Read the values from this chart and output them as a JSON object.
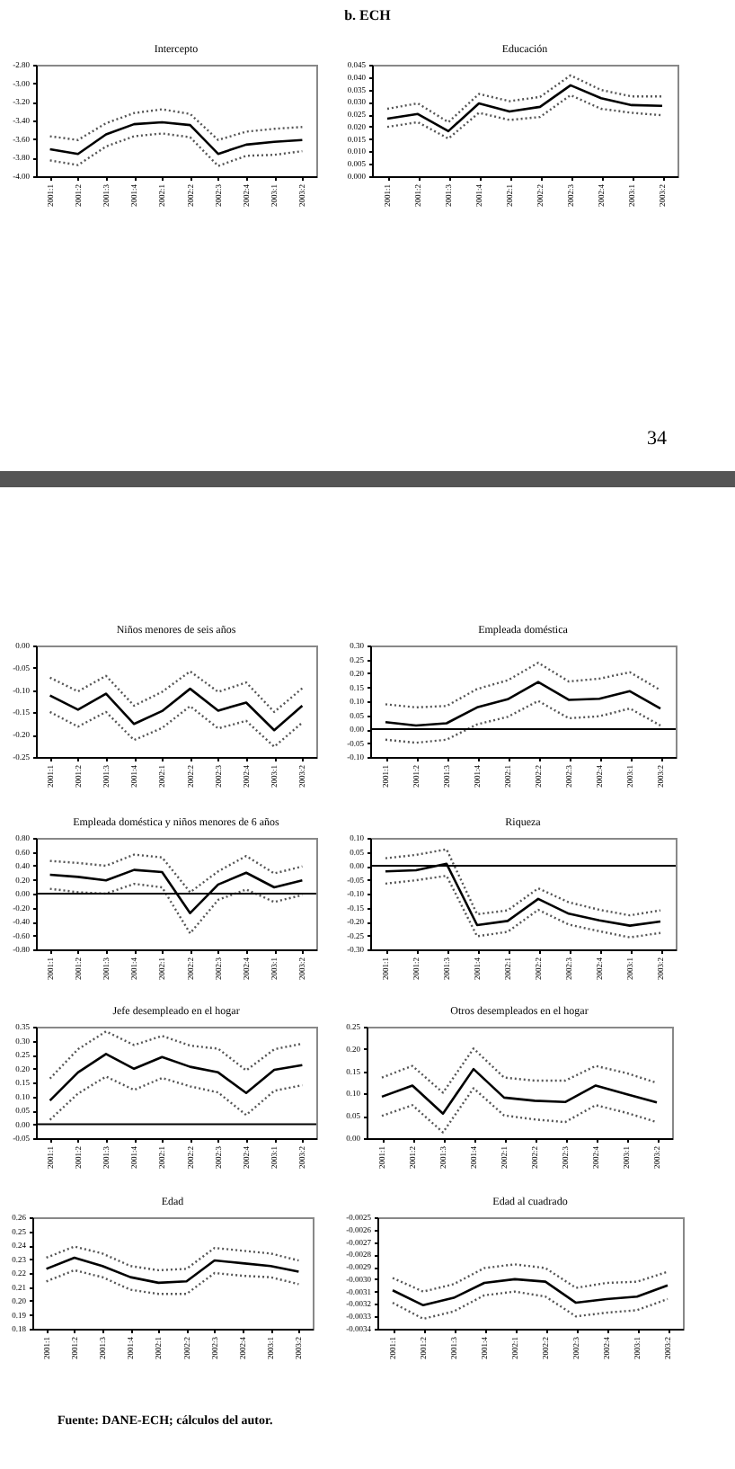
{
  "chart_data": [
    {
      "type": "line",
      "title": "Intercepto",
      "annotations": [
        "b. ECH"
      ],
      "categories": [
        "2001:1",
        "2001:2",
        "2001:3",
        "2001:4",
        "2002:1",
        "2002:2",
        "2002:3",
        "2002:4",
        "2003:1",
        "2003:2"
      ],
      "series": [
        {
          "color": "#000000",
          "line_style": "solid",
          "values": [
            -3.71,
            -3.76,
            -3.55,
            -3.44,
            -3.42,
            -3.45,
            -3.76,
            -3.66,
            -3.63,
            -3.61
          ]
        },
        {
          "color": "#555555",
          "line_style": "dotted",
          "values": [
            -3.57,
            -3.61,
            -3.43,
            -3.32,
            -3.28,
            -3.33,
            -3.61,
            -3.52,
            -3.49,
            -3.47
          ]
        },
        {
          "color": "#555555",
          "line_style": "dotted",
          "values": [
            -3.83,
            -3.88,
            -3.68,
            -3.57,
            -3.54,
            -3.58,
            -3.89,
            -3.78,
            -3.77,
            -3.73
          ]
        }
      ],
      "ylim": [
        -4.0,
        -2.8
      ],
      "yticks": [
        {
          "value": -2.8,
          "label": "-2.80"
        },
        {
          "value": -3.0,
          "label": "-3.00"
        },
        {
          "value": -3.2,
          "label": "-3.20"
        },
        {
          "value": -3.4,
          "label": "-3.40"
        },
        {
          "value": -3.6,
          "label": "-3.60"
        },
        {
          "value": -3.8,
          "label": "-3.80"
        },
        {
          "value": -4.0,
          "label": "-4.00"
        }
      ]
    },
    {
      "type": "line",
      "title": "Educación",
      "annotations": [
        "34"
      ],
      "categories": [
        "2001:1",
        "2001:2",
        "2001:3",
        "2001:4",
        "2002:1",
        "2002:2",
        "2002:3",
        "2002:4",
        "2003:1",
        "2003:2"
      ],
      "series": [
        {
          "color": "#000000",
          "line_style": "solid",
          "values": [
            0.0232,
            0.0251,
            0.0182,
            0.0294,
            0.0261,
            0.028,
            0.0367,
            0.0315,
            0.0287,
            0.0284
          ]
        },
        {
          "color": "#555555",
          "line_style": "dotted",
          "values": [
            0.0272,
            0.0294,
            0.0218,
            0.0332,
            0.0303,
            0.032,
            0.0407,
            0.0348,
            0.0322,
            0.0322
          ]
        },
        {
          "color": "#555555",
          "line_style": "dotted",
          "values": [
            0.0199,
            0.0218,
            0.0152,
            0.0256,
            0.0227,
            0.0239,
            0.0327,
            0.0272,
            0.0256,
            0.0246
          ]
        }
      ],
      "ylim": [
        0,
        0.045
      ],
      "yticks": [
        {
          "value": 0,
          "label": "0.000"
        },
        {
          "value": 0.005,
          "label": "0.005"
        },
        {
          "value": 0.01,
          "label": "0.010"
        },
        {
          "value": 0.015,
          "label": "0.015"
        },
        {
          "value": 0.02,
          "label": "0.020"
        },
        {
          "value": 0.025,
          "label": "0.025"
        },
        {
          "value": 0.03,
          "label": "0.030"
        },
        {
          "value": 0.035,
          "label": "0.035"
        },
        {
          "value": 0.04,
          "label": "0.040"
        },
        {
          "value": 0.045,
          "label": "0.045"
        }
      ]
    },
    {
      "type": "line",
      "title": "Niños menores de seis años",
      "categories": [
        "2001:1",
        "2001:2",
        "2001:3",
        "2001:4",
        "2002:1",
        "2002:2",
        "2002:3",
        "2002:4",
        "2003:1",
        "2003:2"
      ],
      "series": [
        {
          "color": "#000000",
          "line_style": "solid",
          "values": [
            -0.112,
            -0.144,
            -0.108,
            -0.176,
            -0.147,
            -0.097,
            -0.146,
            -0.128,
            -0.19,
            -0.135
          ]
        },
        {
          "color": "#555555",
          "line_style": "dotted",
          "values": [
            -0.072,
            -0.103,
            -0.068,
            -0.135,
            -0.104,
            -0.058,
            -0.104,
            -0.083,
            -0.149,
            -0.096
          ]
        },
        {
          "color": "#555555",
          "line_style": "dotted",
          "values": [
            -0.149,
            -0.182,
            -0.149,
            -0.212,
            -0.185,
            -0.136,
            -0.186,
            -0.169,
            -0.227,
            -0.173
          ]
        }
      ],
      "ylim": [
        -0.25,
        0
      ],
      "yticks": [
        {
          "value": 0,
          "label": "0.00"
        },
        {
          "value": -0.05,
          "label": "-0.05"
        },
        {
          "value": -0.1,
          "label": "-0.10"
        },
        {
          "value": -0.15,
          "label": "-0.15"
        },
        {
          "value": -0.2,
          "label": "-0.20"
        },
        {
          "value": -0.25,
          "label": "-0.25"
        }
      ]
    },
    {
      "type": "line",
      "title": "Empleada doméstica",
      "categories": [
        "2001:1",
        "2001:2",
        "2001:3",
        "2001:4",
        "2002:1",
        "2002:2",
        "2002:3",
        "2002:4",
        "2003:1",
        "2003:2"
      ],
      "series": [
        {
          "color": "#000000",
          "line_style": "solid",
          "values": [
            0.025,
            0.013,
            0.021,
            0.078,
            0.107,
            0.169,
            0.105,
            0.109,
            0.136,
            0.074
          ]
        },
        {
          "color": "#555555",
          "line_style": "dotted",
          "values": [
            0.089,
            0.078,
            0.083,
            0.144,
            0.175,
            0.238,
            0.171,
            0.181,
            0.204,
            0.14
          ]
        },
        {
          "color": "#555555",
          "line_style": "dotted",
          "values": [
            -0.038,
            -0.049,
            -0.038,
            0.017,
            0.044,
            0.101,
            0.039,
            0.046,
            0.074,
            0.013
          ]
        }
      ],
      "ylim": [
        -0.1,
        0.3
      ],
      "yticks": [
        {
          "value": 0.3,
          "label": "0.30"
        },
        {
          "value": 0.25,
          "label": "0.25"
        },
        {
          "value": 0.2,
          "label": "0.20"
        },
        {
          "value": 0.15,
          "label": "0.15"
        },
        {
          "value": 0.1,
          "label": "0.10"
        },
        {
          "value": 0.05,
          "label": "0.05"
        },
        {
          "value": 0,
          "label": "0.00"
        },
        {
          "value": -0.05,
          "label": "-0.05"
        },
        {
          "value": -0.1,
          "label": "-0.10"
        }
      ],
      "ref_lines": [
        {
          "axis": "y",
          "value": 0,
          "color": "#000000"
        }
      ]
    },
    {
      "type": "line",
      "title": "Empleada doméstica y niños menores de 6 años",
      "categories": [
        "2001:1",
        "2001:2",
        "2001:3",
        "2001:4",
        "2002:1",
        "2002:2",
        "2002:3",
        "2002:4",
        "2003:1",
        "2003:2"
      ],
      "series": [
        {
          "color": "#000000",
          "line_style": "solid",
          "values": [
            0.27,
            0.24,
            0.19,
            0.34,
            0.31,
            -0.28,
            0.13,
            0.3,
            0.09,
            0.19
          ]
        },
        {
          "color": "#555555",
          "line_style": "dotted",
          "values": [
            0.47,
            0.44,
            0.4,
            0.56,
            0.52,
            0.02,
            0.32,
            0.54,
            0.29,
            0.39
          ]
        },
        {
          "color": "#555555",
          "line_style": "dotted",
          "values": [
            0.07,
            0.02,
            0.0,
            0.14,
            0.09,
            -0.57,
            -0.09,
            0.06,
            -0.12,
            -0.02
          ]
        }
      ],
      "ylim": [
        -0.8,
        0.8
      ],
      "yticks": [
        {
          "value": 0.8,
          "label": "0.80"
        },
        {
          "value": 0.6,
          "label": "0.60"
        },
        {
          "value": 0.4,
          "label": "0.40"
        },
        {
          "value": 0.2,
          "label": "0.20"
        },
        {
          "value": 0,
          "label": "0.00"
        },
        {
          "value": -0.2,
          "label": "-0.20"
        },
        {
          "value": -0.4,
          "label": "-0.40"
        },
        {
          "value": -0.6,
          "label": "-0.60"
        },
        {
          "value": -0.8,
          "label": "-0.80"
        }
      ],
      "ref_lines": [
        {
          "axis": "y",
          "value": 0,
          "color": "#000000"
        }
      ]
    },
    {
      "type": "line",
      "title": "Riqueza",
      "categories": [
        "2001:1",
        "2001:2",
        "2001:3",
        "2001:4",
        "2002:1",
        "2002:2",
        "2002:3",
        "2002:4",
        "2003:1",
        "2003:2"
      ],
      "series": [
        {
          "color": "#000000",
          "line_style": "solid",
          "values": [
            -0.02,
            -0.016,
            0.007,
            -0.213,
            -0.198,
            -0.119,
            -0.172,
            -0.196,
            -0.215,
            -0.2
          ]
        },
        {
          "color": "#555555",
          "line_style": "dotted",
          "values": [
            0.027,
            0.039,
            0.059,
            -0.174,
            -0.16,
            -0.081,
            -0.131,
            -0.158,
            -0.178,
            -0.16
          ]
        },
        {
          "color": "#555555",
          "line_style": "dotted",
          "values": [
            -0.064,
            -0.052,
            -0.036,
            -0.253,
            -0.237,
            -0.158,
            -0.211,
            -0.235,
            -0.257,
            -0.241
          ]
        }
      ],
      "ylim": [
        -0.3,
        0.1
      ],
      "yticks": [
        {
          "value": 0.1,
          "label": "0.10"
        },
        {
          "value": 0.05,
          "label": "0.05"
        },
        {
          "value": 0,
          "label": "0.00"
        },
        {
          "value": -0.05,
          "label": "-0.05"
        },
        {
          "value": -0.1,
          "label": "-0.10"
        },
        {
          "value": -0.15,
          "label": "-0.15"
        },
        {
          "value": -0.2,
          "label": "-0.20"
        },
        {
          "value": -0.25,
          "label": "-0.25"
        },
        {
          "value": -0.3,
          "label": "-0.30"
        }
      ],
      "ref_lines": [
        {
          "axis": "y",
          "value": 0,
          "color": "#000000"
        }
      ]
    },
    {
      "type": "line",
      "title": "Jefe desempleado en el hogar",
      "categories": [
        "2001:1",
        "2001:2",
        "2001:3",
        "2001:4",
        "2002:1",
        "2002:2",
        "2002:3",
        "2002:4",
        "2003:1",
        "2003:2"
      ],
      "series": [
        {
          "color": "#000000",
          "line_style": "solid",
          "values": [
            0.085,
            0.186,
            0.252,
            0.199,
            0.241,
            0.206,
            0.186,
            0.112,
            0.195,
            0.212
          ]
        },
        {
          "color": "#555555",
          "line_style": "dotted",
          "values": [
            0.164,
            0.269,
            0.333,
            0.284,
            0.317,
            0.282,
            0.271,
            0.193,
            0.269,
            0.289
          ]
        },
        {
          "color": "#555555",
          "line_style": "dotted",
          "values": [
            0.016,
            0.11,
            0.171,
            0.123,
            0.166,
            0.136,
            0.114,
            0.033,
            0.12,
            0.14
          ]
        }
      ],
      "ylim": [
        -0.05,
        0.35
      ],
      "yticks": [
        {
          "value": 0.35,
          "label": "0.35"
        },
        {
          "value": 0.3,
          "label": "0.30"
        },
        {
          "value": 0.25,
          "label": "0.25"
        },
        {
          "value": 0.2,
          "label": "0.20"
        },
        {
          "value": 0.15,
          "label": "0.15"
        },
        {
          "value": 0.1,
          "label": "0.10"
        },
        {
          "value": 0.05,
          "label": "0.05"
        },
        {
          "value": 0,
          "label": "0.00"
        },
        {
          "value": -0.05,
          "label": "-0.05"
        }
      ],
      "ref_lines": [
        {
          "axis": "y",
          "value": 0,
          "color": "#000000"
        }
      ]
    },
    {
      "type": "line",
      "title": "Otros desempleados en el hogar",
      "categories": [
        "2001:1",
        "2001:2",
        "2001:3",
        "2001:4",
        "2002:1",
        "2002:2",
        "2002:3",
        "2002:4",
        "2003:1",
        "2003:2"
      ],
      "series": [
        {
          "color": "#000000",
          "line_style": "solid",
          "values": [
            0.093,
            0.118,
            0.055,
            0.155,
            0.091,
            0.084,
            0.081,
            0.118,
            0.099,
            0.08
          ]
        },
        {
          "color": "#555555",
          "line_style": "dotted",
          "values": [
            0.136,
            0.162,
            0.102,
            0.201,
            0.136,
            0.129,
            0.129,
            0.162,
            0.146,
            0.124
          ]
        },
        {
          "color": "#555555",
          "line_style": "dotted",
          "values": [
            0.05,
            0.074,
            0.013,
            0.112,
            0.051,
            0.042,
            0.036,
            0.074,
            0.057,
            0.036
          ]
        }
      ],
      "ylim": [
        0,
        0.25
      ],
      "yticks": [
        {
          "value": 0.25,
          "label": "0.25"
        },
        {
          "value": 0.2,
          "label": "0.20"
        },
        {
          "value": 0.15,
          "label": "0.15"
        },
        {
          "value": 0.1,
          "label": "0.10"
        },
        {
          "value": 0.05,
          "label": "0.05"
        },
        {
          "value": 0,
          "label": "0.00"
        }
      ]
    },
    {
      "type": "line",
      "title": "Edad",
      "categories": [
        "2001:1",
        "2001:2",
        "2001:3",
        "2001:4",
        "2002:1",
        "2002:2",
        "2002:3",
        "2002:4",
        "2003:1",
        "2003:2"
      ],
      "series": [
        {
          "color": "#000000",
          "line_style": "solid",
          "values": [
            0.223,
            0.231,
            0.225,
            0.217,
            0.213,
            0.214,
            0.229,
            0.227,
            0.225,
            0.221
          ]
        },
        {
          "color": "#555555",
          "line_style": "dotted",
          "values": [
            0.231,
            0.239,
            0.234,
            0.225,
            0.222,
            0.223,
            0.238,
            0.236,
            0.234,
            0.229
          ]
        },
        {
          "color": "#555555",
          "line_style": "dotted",
          "values": [
            0.214,
            0.222,
            0.217,
            0.208,
            0.205,
            0.205,
            0.22,
            0.218,
            0.217,
            0.212
          ]
        }
      ],
      "ylim": [
        0.18,
        0.26
      ],
      "yticks": [
        {
          "value": 0.26,
          "label": "0.26"
        },
        {
          "value": 0.25,
          "label": "0.25"
        },
        {
          "value": 0.24,
          "label": "0.24"
        },
        {
          "value": 0.23,
          "label": "0.23"
        },
        {
          "value": 0.22,
          "label": "0.22"
        },
        {
          "value": 0.21,
          "label": "0.21"
        },
        {
          "value": 0.2,
          "label": "0.20"
        },
        {
          "value": 0.19,
          "label": "0.19"
        },
        {
          "value": 0.18,
          "label": "0.18"
        }
      ]
    },
    {
      "type": "line",
      "title": "Edad al cuadrado",
      "annotations": [
        "Fuente: DANE-ECH; cálculos del autor."
      ],
      "categories": [
        "2001:1",
        "2001:2",
        "2001:3",
        "2001:4",
        "2002:1",
        "2002:2",
        "2002:3",
        "2002:4",
        "2003:1",
        "2003:2"
      ],
      "series": [
        {
          "color": "#000000",
          "line_style": "solid",
          "values": [
            -0.00309,
            -0.00321,
            -0.00315,
            -0.00303,
            -0.003,
            -0.00302,
            -0.00319,
            -0.00316,
            -0.00314,
            -0.00305
          ]
        },
        {
          "color": "#555555",
          "line_style": "dotted",
          "values": [
            -0.00299,
            -0.0031,
            -0.00304,
            -0.00291,
            -0.00288,
            -0.00291,
            -0.00307,
            -0.00303,
            -0.00302,
            -0.00294
          ]
        },
        {
          "color": "#555555",
          "line_style": "dotted",
          "values": [
            -0.00319,
            -0.00332,
            -0.00326,
            -0.00313,
            -0.0031,
            -0.00314,
            -0.0033,
            -0.00327,
            -0.00325,
            -0.00316
          ]
        }
      ],
      "ylim": [
        -0.0034,
        -0.0025
      ],
      "yticks": [
        -0.0025,
        -0.0026,
        -0.0027,
        -0.0028,
        -0.0029,
        {
          "value": -0.003,
          "label": "-0.0030"
        },
        -0.0031,
        -0.0032,
        -0.0033,
        -0.0034
      ]
    }
  ]
}
